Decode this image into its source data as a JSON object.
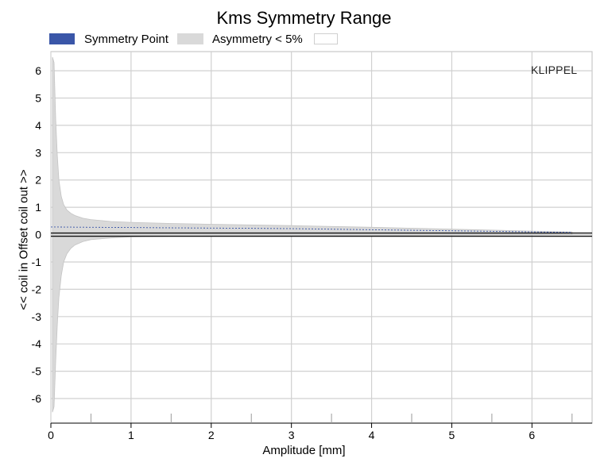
{
  "chart_data": {
    "type": "area",
    "title": "Kms Symmetry Range",
    "xlabel": "Amplitude [mm]",
    "ylabel": "<< coil in        Offset        coil out >>",
    "xlim": [
      0,
      6.75
    ],
    "ylim": [
      -6.9,
      6.7
    ],
    "x_ticks": [
      0,
      1,
      2,
      3,
      4,
      5,
      6
    ],
    "y_ticks": [
      6,
      5,
      4,
      3,
      2,
      1,
      0,
      -1,
      -2,
      -3,
      -4,
      -5,
      -6
    ],
    "grid": true,
    "legend_position": "top-left",
    "legend": [
      {
        "label": "Symmetry Point",
        "color": "#3a56a8"
      },
      {
        "label": "Asymmetry < 5%",
        "color": "#d9d9d9"
      },
      {
        "label": "",
        "color": "#ffffff"
      }
    ],
    "series": [
      {
        "name": "Symmetry Point",
        "x": [
          0.0,
          0.5,
          1.0,
          1.5,
          2.0,
          2.5,
          3.0,
          3.5,
          4.0,
          4.5,
          5.0,
          5.5,
          6.0,
          6.5
        ],
        "values": [
          0.28,
          0.27,
          0.26,
          0.25,
          0.24,
          0.23,
          0.22,
          0.2,
          0.18,
          0.16,
          0.14,
          0.12,
          0.1,
          0.08
        ]
      },
      {
        "name": "Asymmetry < 5%",
        "x": [
          0.02,
          0.04,
          0.06,
          0.08,
          0.1,
          0.13,
          0.16,
          0.2,
          0.25,
          0.3,
          0.4,
          0.5,
          0.75,
          1.0,
          1.5,
          2.0,
          3.0,
          4.0,
          5.0,
          6.0,
          6.5
        ],
        "upper": [
          6.5,
          6.3,
          4.2,
          2.9,
          2.0,
          1.4,
          1.1,
          0.9,
          0.78,
          0.7,
          0.6,
          0.55,
          0.48,
          0.45,
          0.41,
          0.38,
          0.33,
          0.27,
          0.2,
          0.13,
          0.1
        ],
        "lower": [
          -6.5,
          -6.3,
          -4.6,
          -3.3,
          -2.3,
          -1.5,
          -1.0,
          -0.7,
          -0.5,
          -0.38,
          -0.25,
          -0.18,
          -0.12,
          -0.08,
          -0.06,
          -0.05,
          -0.04,
          -0.03,
          -0.02,
          -0.01,
          0.0
        ]
      }
    ],
    "watermark": "KLIPPEL"
  }
}
